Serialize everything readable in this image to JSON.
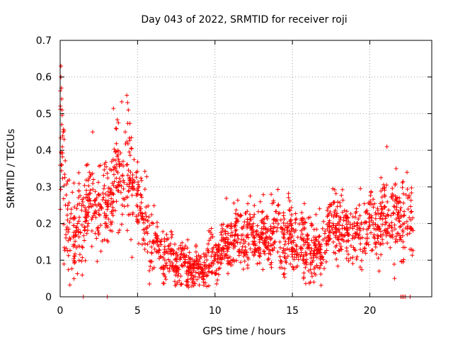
{
  "chart_data": {
    "type": "scatter",
    "title": "Day 043 of 2022, SRMTID for receiver roji",
    "xlabel": "GPS time / hours",
    "ylabel": "SRMTID / TECUs",
    "xlim": [
      0,
      24
    ],
    "ylim": [
      0,
      0.7
    ],
    "xticks": [
      "0",
      "5",
      "10",
      "15",
      "20"
    ],
    "yticks": [
      "0",
      "0.1",
      "0.2",
      "0.3",
      "0.4",
      "0.5",
      "0.6",
      "0.7"
    ],
    "grid": true,
    "marker": "+",
    "color": "#ff0000",
    "trend": [
      [
        0.0,
        0.4
      ],
      [
        0.25,
        0.26
      ],
      [
        0.5,
        0.2
      ],
      [
        0.75,
        0.18
      ],
      [
        1.0,
        0.16
      ],
      [
        1.25,
        0.2
      ],
      [
        1.5,
        0.22
      ],
      [
        1.75,
        0.25
      ],
      [
        2.0,
        0.24
      ],
      [
        2.25,
        0.27
      ],
      [
        2.5,
        0.25
      ],
      [
        2.75,
        0.22
      ],
      [
        3.0,
        0.26
      ],
      [
        3.25,
        0.3
      ],
      [
        3.5,
        0.32
      ],
      [
        3.75,
        0.3
      ],
      [
        4.0,
        0.33
      ],
      [
        4.25,
        0.34
      ],
      [
        4.5,
        0.32
      ],
      [
        4.75,
        0.3
      ],
      [
        5.0,
        0.27
      ],
      [
        5.25,
        0.22
      ],
      [
        5.5,
        0.19
      ],
      [
        5.75,
        0.16
      ],
      [
        6.0,
        0.14
      ],
      [
        6.5,
        0.12
      ],
      [
        7.0,
        0.11
      ],
      [
        7.5,
        0.1
      ],
      [
        8.0,
        0.09
      ],
      [
        8.5,
        0.08
      ],
      [
        9.0,
        0.08
      ],
      [
        9.5,
        0.1
      ],
      [
        10.0,
        0.12
      ],
      [
        10.5,
        0.13
      ],
      [
        11.0,
        0.15
      ],
      [
        11.5,
        0.16
      ],
      [
        12.0,
        0.16
      ],
      [
        12.5,
        0.17
      ],
      [
        13.0,
        0.16
      ],
      [
        13.5,
        0.17
      ],
      [
        14.0,
        0.18
      ],
      [
        14.5,
        0.16
      ],
      [
        15.0,
        0.15
      ],
      [
        15.5,
        0.14
      ],
      [
        16.0,
        0.14
      ],
      [
        16.5,
        0.13
      ],
      [
        17.0,
        0.15
      ],
      [
        17.5,
        0.19
      ],
      [
        18.0,
        0.2
      ],
      [
        18.5,
        0.18
      ],
      [
        19.0,
        0.17
      ],
      [
        19.5,
        0.18
      ],
      [
        20.0,
        0.2
      ],
      [
        20.5,
        0.2
      ],
      [
        21.0,
        0.21
      ],
      [
        21.5,
        0.2
      ],
      [
        22.0,
        0.22
      ],
      [
        22.5,
        0.2
      ],
      [
        22.8,
        0.19
      ]
    ],
    "spread": [
      [
        0.0,
        0.1
      ],
      [
        1.0,
        0.07
      ],
      [
        3.0,
        0.07
      ],
      [
        4.5,
        0.09
      ],
      [
        5.5,
        0.06
      ],
      [
        7.0,
        0.04
      ],
      [
        9.0,
        0.03
      ],
      [
        11.0,
        0.05
      ],
      [
        14.0,
        0.05
      ],
      [
        17.0,
        0.05
      ],
      [
        20.0,
        0.05
      ],
      [
        22.8,
        0.06
      ]
    ],
    "outliers": [
      [
        0.05,
        0.63
      ],
      [
        0.05,
        0.6
      ],
      [
        0.08,
        0.57
      ],
      [
        0.1,
        0.54
      ],
      [
        0.12,
        0.51
      ],
      [
        0.1,
        0.47
      ],
      [
        0.2,
        0.45
      ],
      [
        0.25,
        0.43
      ],
      [
        2.1,
        0.45
      ],
      [
        3.6,
        0.46
      ],
      [
        4.3,
        0.55
      ],
      [
        4.35,
        0.53
      ],
      [
        4.4,
        0.51
      ],
      [
        4.2,
        0.45
      ],
      [
        21.1,
        0.41
      ],
      [
        21.7,
        0.35
      ],
      [
        22.4,
        0.34
      ],
      [
        1.5,
        0.0
      ],
      [
        3.05,
        0.0
      ],
      [
        22.0,
        0.0
      ],
      [
        22.1,
        0.0
      ],
      [
        22.2,
        0.0
      ],
      [
        22.3,
        0.0
      ],
      [
        22.6,
        0.0
      ],
      [
        8.2,
        0.03
      ],
      [
        9.6,
        0.03
      ],
      [
        16.5,
        0.06
      ],
      [
        20.6,
        0.07
      ],
      [
        21.6,
        0.05
      ]
    ],
    "sample_count": 1900
  }
}
